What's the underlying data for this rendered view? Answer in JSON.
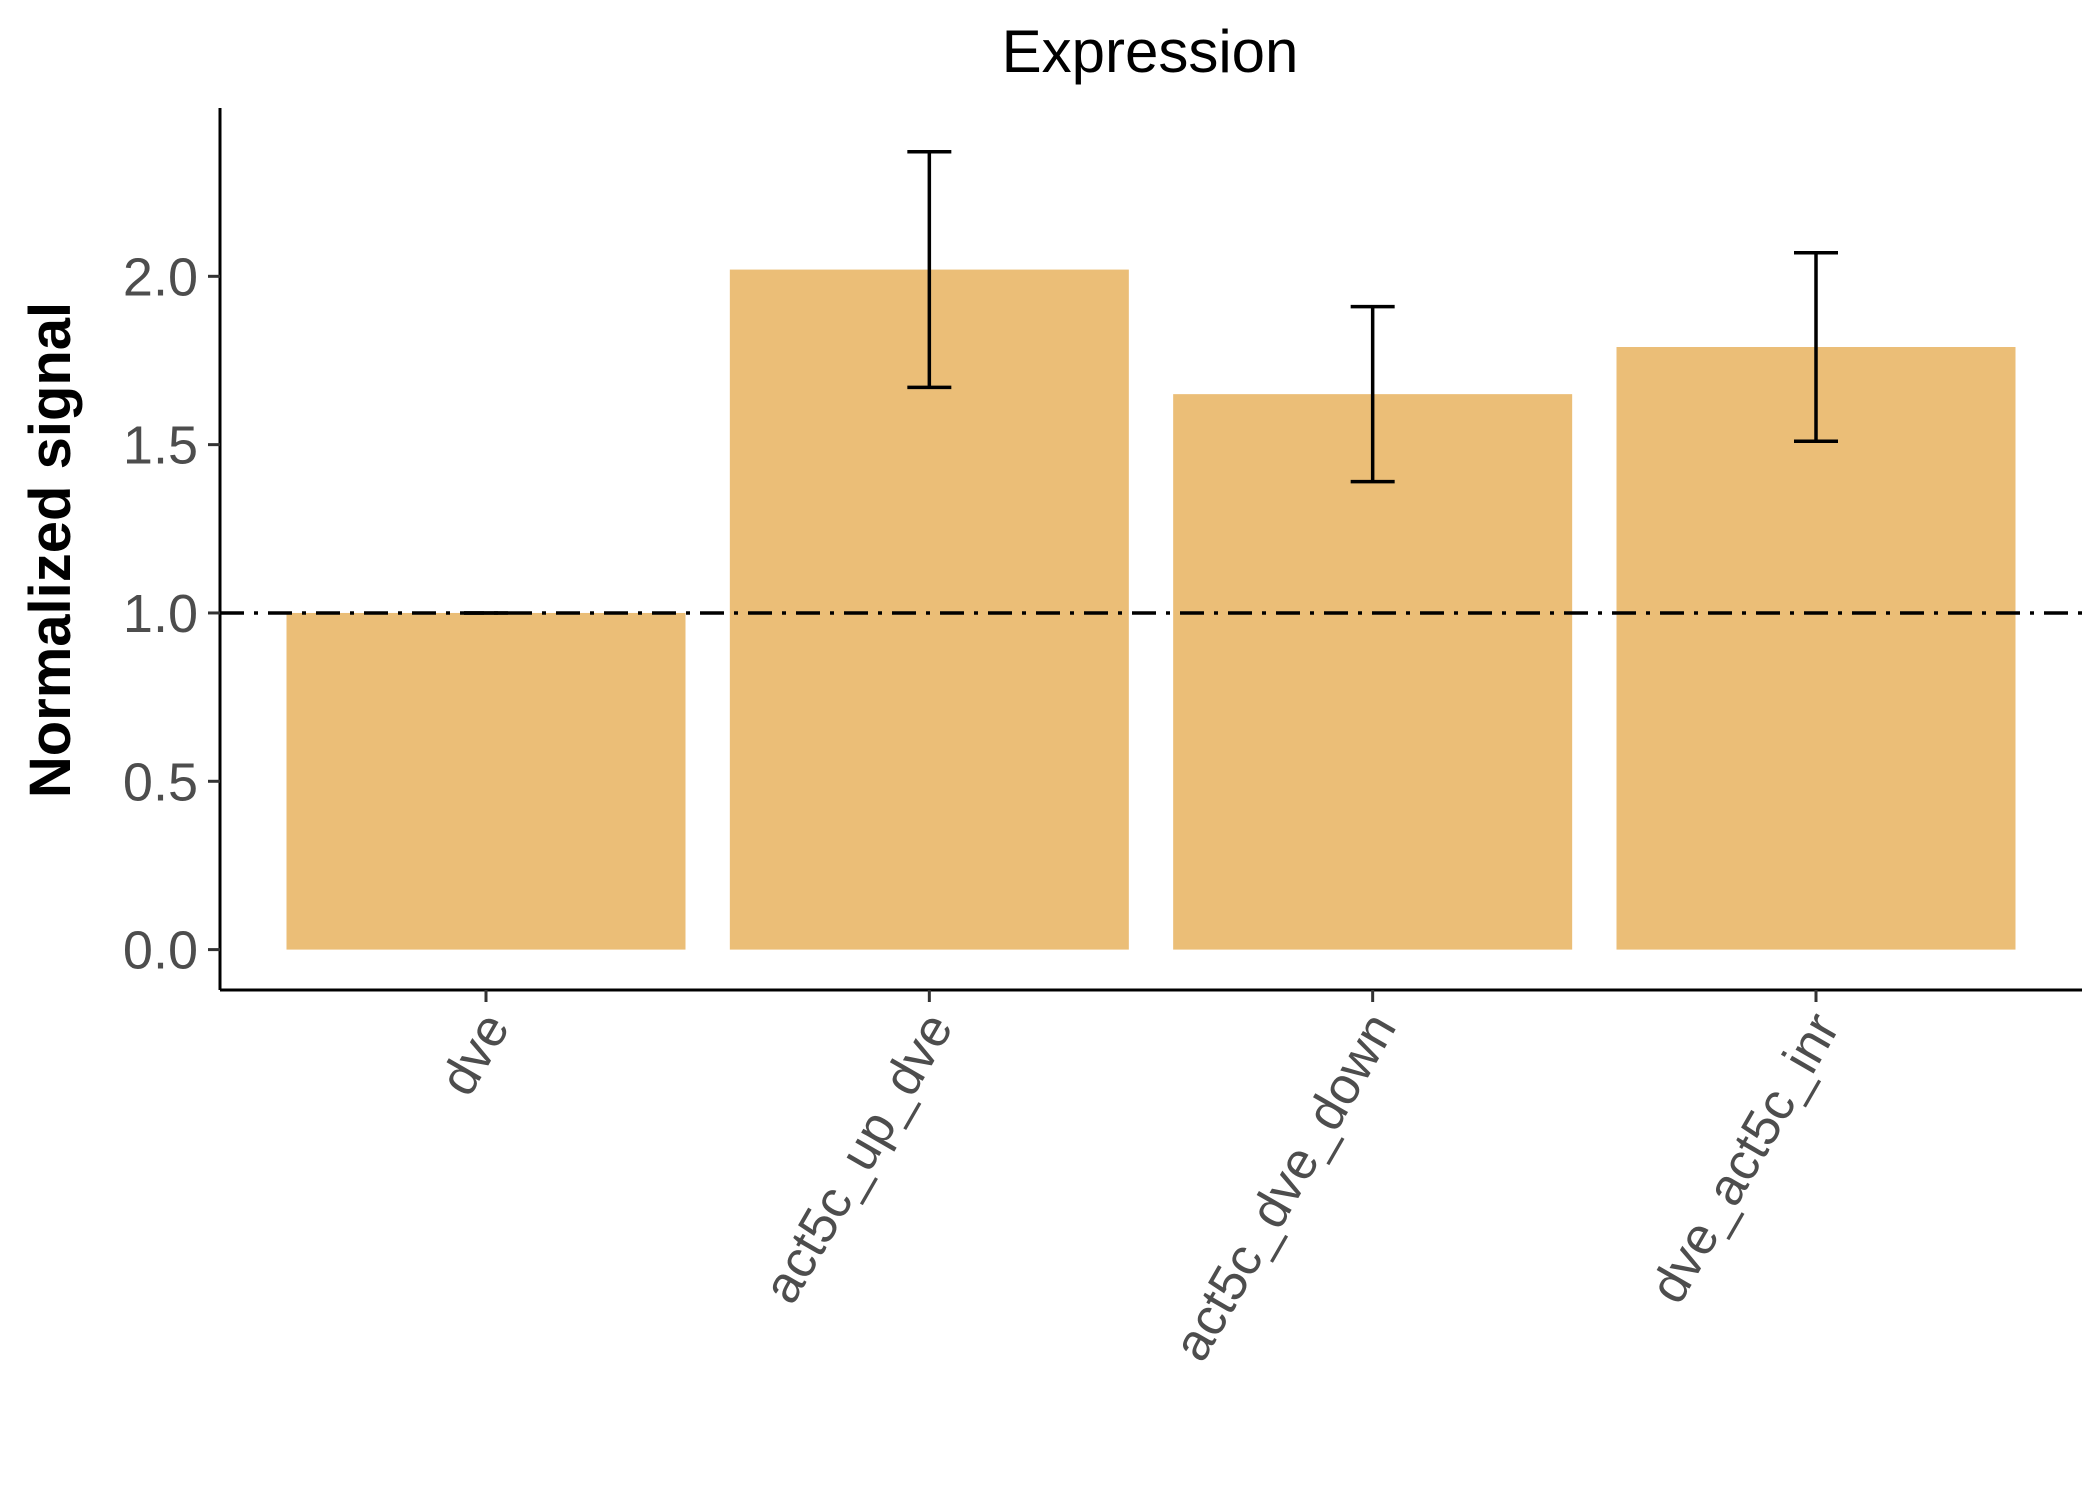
{
  "chart_data": {
    "type": "bar",
    "title": "Expression",
    "xlabel": "",
    "ylabel": "Normalized signal",
    "categories": [
      "dve",
      "act5c_up_dve",
      "act5c_dve_down",
      "dve_act5c_inr"
    ],
    "values": [
      1.0,
      2.02,
      1.65,
      1.79
    ],
    "error_low": [
      1.0,
      1.67,
      1.39,
      1.51
    ],
    "error_high": [
      1.0,
      2.37,
      1.91,
      2.07
    ],
    "reference_line": {
      "y": 1.0,
      "style": "dash-dot"
    },
    "ylim": [
      -0.12,
      2.5
    ],
    "yticks": [
      "0.0",
      "0.5",
      "1.0",
      "1.5",
      "2.0"
    ],
    "ytick_values": [
      0,
      0.5,
      1.0,
      1.5,
      2.0
    ],
    "bar_color": "#EBBE77",
    "grid": false,
    "legend": "none",
    "xtick_rotation_deg": -60
  }
}
